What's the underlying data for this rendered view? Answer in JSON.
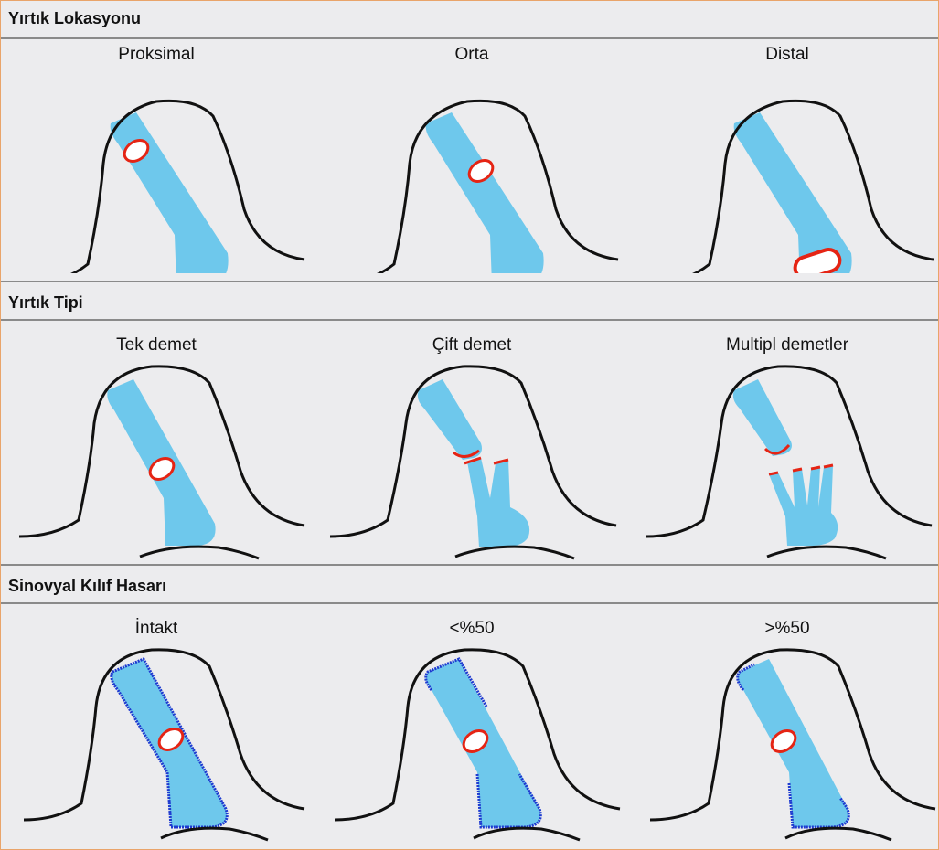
{
  "colors": {
    "background": "#ececee",
    "border": "#e9a46a",
    "tendon": "#6ec8ec",
    "tear": "#e52414",
    "sheath": "#1e3ad0",
    "outline": "#111111"
  },
  "sections": [
    {
      "title": "Yırtık Lokasyonu",
      "panels": [
        {
          "label": "Proksimal",
          "variant": "loc-proximal"
        },
        {
          "label": "Orta",
          "variant": "loc-middle"
        },
        {
          "label": "Distal",
          "variant": "loc-distal"
        }
      ]
    },
    {
      "title": "Yırtık Tipi",
      "panels": [
        {
          "label": "Tek demet",
          "variant": "type-single"
        },
        {
          "label": "Çift demet",
          "variant": "type-double"
        },
        {
          "label": "Multipl demetler",
          "variant": "type-multiple"
        }
      ]
    },
    {
      "title": "Sinovyal Kılıf Hasarı",
      "panels": [
        {
          "label": "İntakt",
          "variant": "sheath-intact"
        },
        {
          "label": "<%50",
          "variant": "sheath-lt50"
        },
        {
          "label": ">%50",
          "variant": "sheath-gt50"
        }
      ]
    }
  ]
}
